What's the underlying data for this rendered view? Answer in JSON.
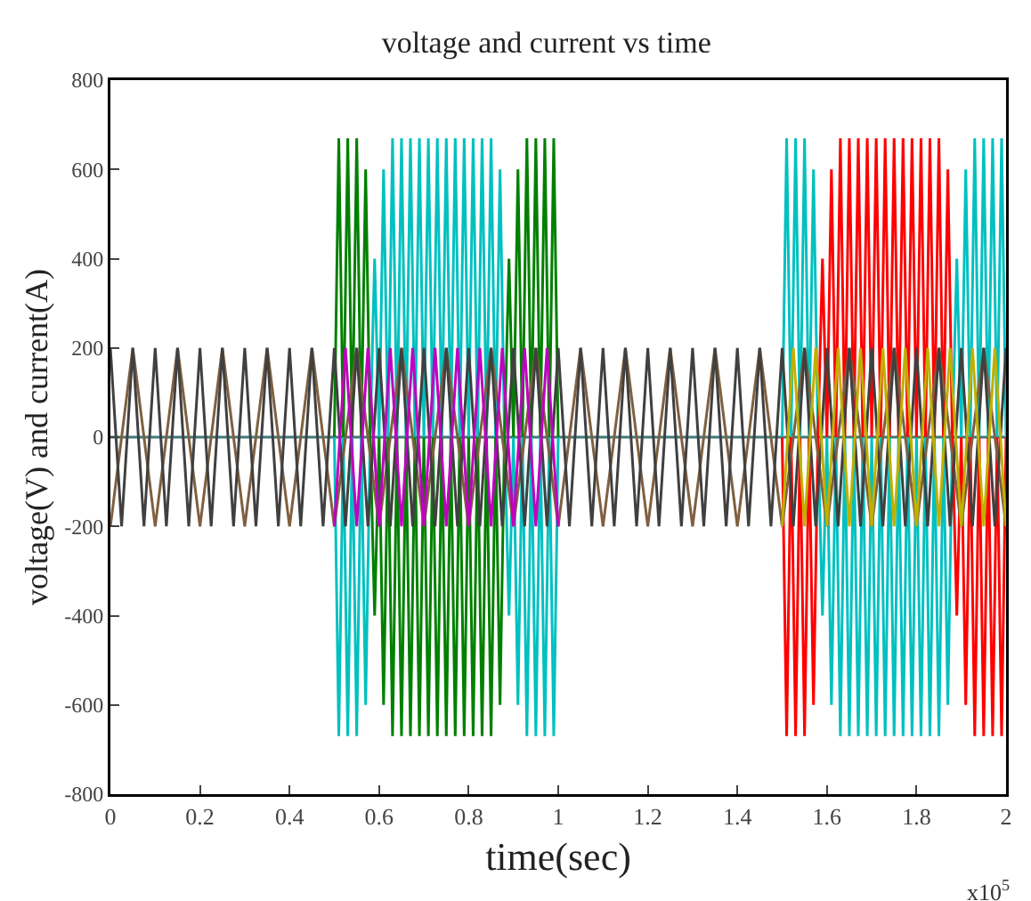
{
  "chart_data": {
    "type": "line",
    "title": "voltage and current vs time",
    "xlabel": "time(sec)",
    "ylabel": "voltage(V) and current(A)",
    "annotations": [
      "x10$^{5}$"
    ],
    "xlim": [
      0,
      2
    ],
    "ylim": [
      -800,
      800
    ],
    "xticks": [
      0,
      0.2,
      0.4,
      0.6,
      0.8,
      1,
      1.2,
      1.4,
      1.6,
      1.8,
      2
    ],
    "yticks": [
      -800,
      -600,
      -400,
      -200,
      0,
      200,
      400,
      600,
      800
    ],
    "grid": false,
    "series": [
      {
        "color": "#407878",
        "x": [
          0,
          2
        ],
        "values": [
          0,
          0
        ]
      },
      {
        "color": "#00c0c0",
        "x": [
          0.5,
          0.51,
          0.52,
          0.53,
          0.54,
          0.55,
          0.56,
          0.57,
          0.58,
          0.59,
          0.6,
          0.61,
          0.62,
          0.63,
          0.64,
          0.65,
          0.66,
          0.67,
          0.68,
          0.69,
          0.7,
          0.71,
          0.72,
          0.73,
          0.74,
          0.75,
          0.76,
          0.77,
          0.78,
          0.79,
          0.8,
          0.81,
          0.82,
          0.83,
          0.84,
          0.85,
          0.86,
          0.87,
          0.88,
          0.89,
          0.9,
          0.91,
          0.92,
          0.93,
          0.94,
          0.95,
          0.96,
          0.97,
          0.98,
          0.99,
          1,
          1.25,
          1.5,
          1.51,
          1.52,
          1.53,
          1.54,
          1.55,
          1.56,
          1.57,
          1.58,
          1.59,
          1.6,
          1.61,
          1.62,
          1.63,
          1.64,
          1.65,
          1.66,
          1.67,
          1.68,
          1.69,
          1.7,
          1.71,
          1.72,
          1.73,
          1.74,
          1.75,
          1.76,
          1.77,
          1.78,
          1.79,
          1.8,
          1.81,
          1.82,
          1.83,
          1.84,
          1.85,
          1.86,
          1.87,
          1.88,
          1.89,
          1.9,
          1.91,
          1.92,
          1.93,
          1.94,
          1.95,
          1.96,
          1.97,
          1.98,
          1.99,
          2
        ],
        "values": [
          0,
          -670,
          0,
          -670,
          0,
          -670,
          0,
          -600,
          0,
          400,
          0,
          600,
          0,
          670,
          0,
          670,
          0,
          670,
          0,
          670,
          0,
          670,
          0,
          670,
          0,
          670,
          0,
          670,
          0,
          670,
          0,
          670,
          0,
          670,
          0,
          670,
          0,
          600,
          0,
          -400,
          0,
          -600,
          0,
          -670,
          0,
          -670,
          0,
          -670,
          0,
          -670,
          0,
          null,
          0,
          670,
          0,
          670,
          0,
          670,
          0,
          600,
          0,
          -400,
          0,
          -600,
          0,
          -670,
          0,
          -670,
          0,
          -670,
          0,
          -670,
          0,
          -670,
          0,
          -670,
          0,
          -670,
          0,
          -670,
          0,
          -670,
          0,
          -670,
          0,
          -670,
          0,
          -670,
          0,
          -600,
          0,
          400,
          0,
          600,
          0,
          670,
          0,
          670,
          0,
          670,
          0,
          670,
          0
        ]
      },
      {
        "color": "#008000",
        "x": [
          0.5,
          0.51,
          0.52,
          0.53,
          0.54,
          0.55,
          0.56,
          0.57,
          0.58,
          0.59,
          0.6,
          0.61,
          0.62,
          0.63,
          0.64,
          0.65,
          0.66,
          0.67,
          0.68,
          0.69,
          0.7,
          0.71,
          0.72,
          0.73,
          0.74,
          0.75,
          0.76,
          0.77,
          0.78,
          0.79,
          0.8,
          0.81,
          0.82,
          0.83,
          0.84,
          0.85,
          0.86,
          0.87,
          0.88,
          0.89,
          0.9,
          0.91,
          0.92,
          0.93,
          0.94,
          0.95,
          0.96,
          0.97,
          0.98,
          0.99,
          1
        ],
        "values": [
          0,
          670,
          0,
          670,
          0,
          670,
          0,
          600,
          0,
          -400,
          0,
          -600,
          0,
          -670,
          0,
          -670,
          0,
          -670,
          0,
          -670,
          0,
          -670,
          0,
          -670,
          0,
          -670,
          0,
          -670,
          0,
          -670,
          0,
          -670,
          0,
          -670,
          0,
          -670,
          0,
          -600,
          0,
          400,
          0,
          600,
          0,
          670,
          0,
          670,
          0,
          670,
          0,
          670,
          0
        ]
      },
      {
        "color": "#ff0000",
        "x": [
          1.5,
          1.51,
          1.52,
          1.53,
          1.54,
          1.55,
          1.56,
          1.57,
          1.58,
          1.59,
          1.6,
          1.61,
          1.62,
          1.63,
          1.64,
          1.65,
          1.66,
          1.67,
          1.68,
          1.69,
          1.7,
          1.71,
          1.72,
          1.73,
          1.74,
          1.75,
          1.76,
          1.77,
          1.78,
          1.79,
          1.8,
          1.81,
          1.82,
          1.83,
          1.84,
          1.85,
          1.86,
          1.87,
          1.88,
          1.89,
          1.9,
          1.91,
          1.92,
          1.93,
          1.94,
          1.95,
          1.96,
          1.97,
          1.98,
          1.99,
          2
        ],
        "values": [
          0,
          -670,
          0,
          -670,
          0,
          -670,
          0,
          -600,
          0,
          400,
          0,
          600,
          0,
          670,
          0,
          670,
          0,
          670,
          0,
          670,
          0,
          670,
          0,
          670,
          0,
          670,
          0,
          670,
          0,
          670,
          0,
          670,
          0,
          670,
          0,
          670,
          0,
          600,
          0,
          -400,
          0,
          -600,
          0,
          -670,
          0,
          -670,
          0,
          -670,
          0,
          -670,
          0
        ]
      },
      {
        "color": "#806040",
        "x": [
          0,
          0.05,
          0.1,
          0.15,
          0.2,
          0.25,
          0.3,
          0.35,
          0.4,
          0.45,
          0.5,
          0.55,
          0.6,
          0.65,
          0.7,
          0.75,
          0.8,
          0.85,
          0.9,
          0.95,
          1,
          1.05,
          1.1,
          1.15,
          1.2,
          1.25,
          1.3,
          1.35,
          1.4,
          1.45,
          1.5,
          1.55,
          1.6,
          1.65,
          1.7,
          1.75,
          1.8,
          1.85,
          1.9,
          1.95,
          2
        ],
        "values": [
          -200,
          200,
          -200,
          200,
          -200,
          200,
          -200,
          200,
          -200,
          200,
          -200,
          200,
          -200,
          200,
          -200,
          200,
          -200,
          200,
          -200,
          200,
          -200,
          200,
          -200,
          200,
          -200,
          200,
          -200,
          200,
          -200,
          200,
          -200,
          200,
          -200,
          200,
          -200,
          200,
          -200,
          200,
          -200,
          200,
          -200
        ]
      },
      {
        "color": "#404040",
        "x": [
          0,
          0.025,
          0.05,
          0.075,
          0.1,
          0.125,
          0.15,
          0.175,
          0.2,
          0.225,
          0.25,
          0.275,
          0.3,
          0.325,
          0.35,
          0.375,
          0.4,
          0.425,
          0.45,
          0.475,
          0.5,
          0.525,
          0.55,
          0.575,
          0.6,
          0.625,
          0.65,
          0.675,
          0.7,
          0.725,
          0.75,
          0.775,
          0.8,
          0.825,
          0.85,
          0.875,
          0.9,
          0.925,
          0.95,
          0.975,
          1,
          1.025,
          1.05,
          1.075,
          1.1,
          1.125,
          1.15,
          1.175,
          1.2,
          1.225,
          1.25,
          1.275,
          1.3,
          1.325,
          1.35,
          1.375,
          1.4,
          1.425,
          1.45,
          1.475,
          1.5,
          1.525,
          1.55,
          1.575,
          1.6,
          1.625,
          1.65,
          1.675,
          1.7,
          1.725,
          1.75,
          1.775,
          1.8,
          1.825,
          1.85,
          1.875,
          1.9,
          1.925,
          1.95,
          1.975,
          2
        ],
        "values": [
          200,
          -200,
          200,
          -200,
          200,
          -200,
          200,
          -200,
          200,
          -200,
          200,
          -200,
          200,
          -200,
          200,
          -200,
          200,
          -200,
          200,
          -200,
          200,
          -200,
          200,
          -200,
          200,
          -200,
          200,
          -200,
          200,
          -200,
          200,
          -200,
          200,
          -200,
          200,
          -200,
          200,
          -200,
          200,
          -200,
          200,
          -200,
          200,
          -200,
          200,
          -200,
          200,
          -200,
          200,
          -200,
          200,
          -200,
          200,
          -200,
          200,
          -200,
          200,
          -200,
          200,
          -200,
          200,
          -200,
          200,
          -200,
          200,
          -200,
          200,
          -200,
          200,
          -200,
          200,
          -200,
          200,
          -200,
          200,
          -200,
          200,
          -200,
          200,
          -200,
          200
        ]
      },
      {
        "color": "#c000c0",
        "x": [
          0.5,
          0.525,
          0.55,
          0.575,
          0.6,
          0.625,
          0.65,
          0.675,
          0.7,
          0.725,
          0.75,
          0.775,
          0.8,
          0.825,
          0.85,
          0.875,
          0.9,
          0.925,
          0.95,
          0.975,
          1
        ],
        "values": [
          -200,
          200,
          -200,
          200,
          -200,
          200,
          -200,
          200,
          -200,
          200,
          -200,
          200,
          -200,
          200,
          -200,
          200,
          -200,
          200,
          -200,
          200,
          -200
        ]
      },
      {
        "color": "#c0b000",
        "x": [
          1.5,
          1.525,
          1.55,
          1.575,
          1.6,
          1.625,
          1.65,
          1.675,
          1.7,
          1.725,
          1.75,
          1.775,
          1.8,
          1.825,
          1.85,
          1.875,
          1.9,
          1.925,
          1.95,
          1.975,
          2
        ],
        "values": [
          -200,
          200,
          -200,
          200,
          -200,
          200,
          -200,
          200,
          -200,
          200,
          -200,
          200,
          -200,
          200,
          -200,
          200,
          -200,
          200,
          -200,
          200,
          -200
        ]
      }
    ]
  }
}
